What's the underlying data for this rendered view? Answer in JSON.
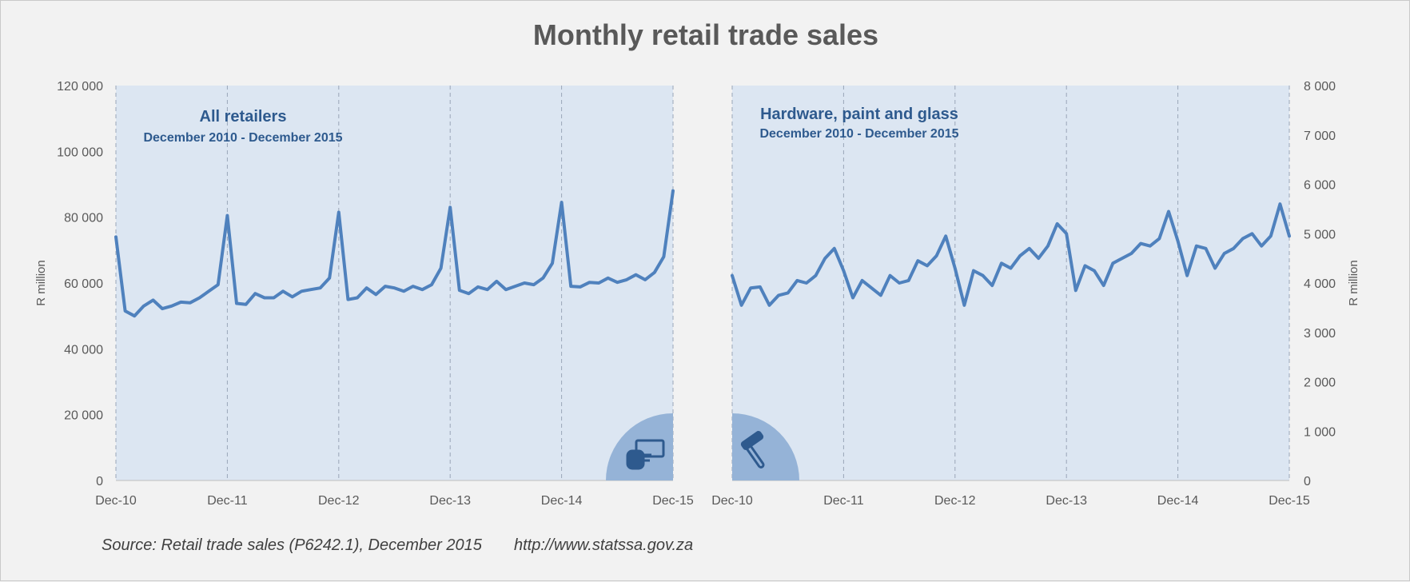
{
  "title": "Monthly retail trade sales",
  "source": "Source: Retail trade sales (P6242.1), December 2015",
  "url": "http://www.statssa.gov.za",
  "colors": {
    "background": "#f2f2f2",
    "plot_area": "#dce6f2",
    "line": "#4f81bd",
    "title_text": "#2e5a8e",
    "icon_circle": "#95b3d7"
  },
  "chart_data": [
    {
      "type": "line",
      "title": "All retailers",
      "subtitle": "December 2010 - December 2015",
      "ylabel": "R million",
      "y_axis_side": "left",
      "ylim": [
        0,
        120000
      ],
      "y_ticks": [
        0,
        20000,
        40000,
        60000,
        80000,
        100000,
        120000
      ],
      "y_tick_labels": [
        "0",
        "20 000",
        "40 000",
        "60 000",
        "80 000",
        "100 000",
        "120 000"
      ],
      "x_tick_labels": [
        "Dec-10",
        "Dec-11",
        "Dec-12",
        "Dec-13",
        "Dec-14",
        "Dec-15"
      ],
      "grid": "vertical dashed at December",
      "icon": "money-hand-icon",
      "series": [
        {
          "values": [
            74000,
            51500,
            50000,
            53000,
            54800,
            52200,
            53000,
            54200,
            54000,
            55500,
            57500,
            59500,
            80500,
            53800,
            53500,
            56800,
            55500,
            55500,
            57500,
            55800,
            57500,
            58000,
            58500,
            61500,
            81500,
            55000,
            55500,
            58500,
            56500,
            59000,
            58500,
            57500,
            59000,
            58000,
            59500,
            64500,
            83000,
            57800,
            56800,
            58800,
            58000,
            60500,
            58000,
            59000,
            60000,
            59500,
            61500,
            66000,
            84500,
            59000,
            58800,
            60200,
            60000,
            61500,
            60200,
            61000,
            62500,
            61000,
            63200,
            68000,
            88000
          ]
        }
      ]
    },
    {
      "type": "line",
      "title": "Hardware, paint and glass",
      "subtitle": "December 2010 - December 2015",
      "ylabel": "R million",
      "y_axis_side": "right",
      "ylim": [
        0,
        8000
      ],
      "y_ticks": [
        0,
        1000,
        2000,
        3000,
        4000,
        5000,
        6000,
        7000,
        8000
      ],
      "y_tick_labels": [
        "0",
        "1 000",
        "2 000",
        "3 000",
        "4 000",
        "5 000",
        "6 000",
        "7 000",
        "8 000"
      ],
      "x_tick_labels": [
        "Dec-10",
        "Dec-11",
        "Dec-12",
        "Dec-13",
        "Dec-14",
        "Dec-15"
      ],
      "grid": "vertical dashed at December",
      "icon": "hammer-icon",
      "series": [
        {
          "values": [
            4150,
            3550,
            3900,
            3920,
            3550,
            3750,
            3800,
            4050,
            4000,
            4150,
            4500,
            4700,
            4250,
            3700,
            4050,
            3900,
            3750,
            4150,
            4000,
            4050,
            4450,
            4350,
            4550,
            4950,
            4300,
            3550,
            4250,
            4150,
            3950,
            4400,
            4300,
            4550,
            4700,
            4500,
            4750,
            5200,
            5000,
            3850,
            4350,
            4250,
            3950,
            4400,
            4500,
            4600,
            4800,
            4750,
            4900,
            5450,
            4850,
            4150,
            4750,
            4700,
            4300,
            4600,
            4700,
            4900,
            5000,
            4750,
            4950,
            5600,
            4950
          ]
        }
      ]
    }
  ]
}
